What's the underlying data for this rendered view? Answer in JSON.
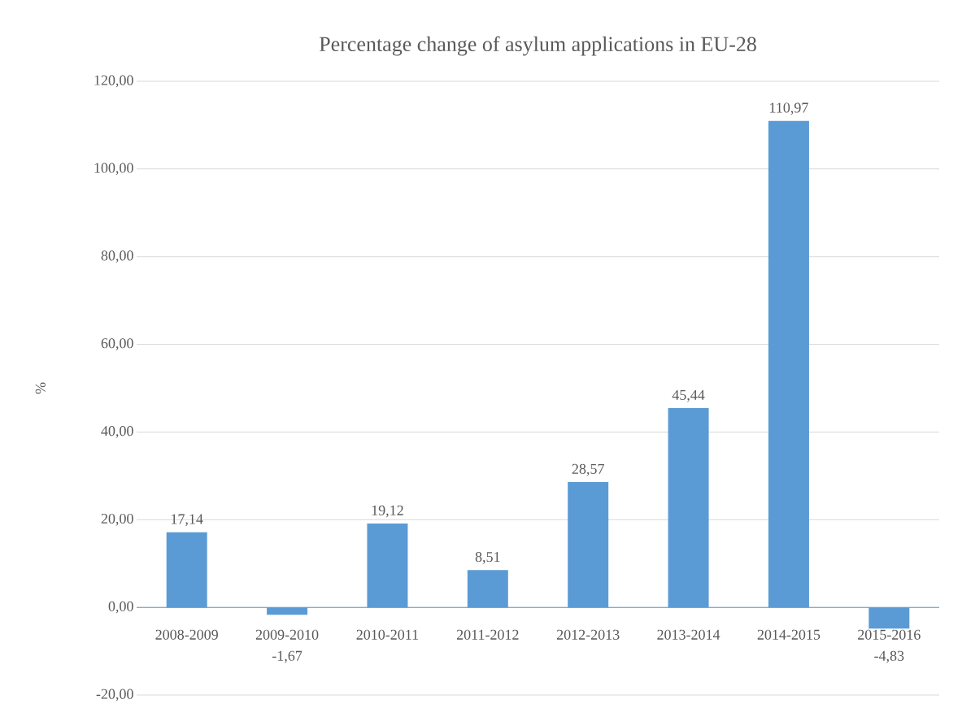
{
  "chart_data": {
    "type": "bar",
    "title": "Percentage change of asylum applications in EU-28",
    "ylabel": "%",
    "categories": [
      "2008-2009",
      "2009-2010",
      "2010-2011",
      "2011-2012",
      "2012-2013",
      "2013-2014",
      "2014-2015",
      "2015-2016"
    ],
    "values": [
      17.14,
      -1.67,
      19.12,
      8.51,
      28.57,
      45.44,
      110.97,
      -4.83
    ],
    "value_labels": [
      "17,14",
      "-1,67",
      "19,12",
      "8,51",
      "28,57",
      "45,44",
      "110,97",
      "-4,83"
    ],
    "color": "#5b9bd5",
    "ylim": [
      -20,
      120
    ],
    "yticks": [
      {
        "value": -20,
        "label": "-20,00"
      },
      {
        "value": 0,
        "label": "0,00"
      },
      {
        "value": 20,
        "label": "20,00"
      },
      {
        "value": 40,
        "label": "40,00"
      },
      {
        "value": 60,
        "label": "60,00"
      },
      {
        "value": 80,
        "label": "80,00"
      },
      {
        "value": 100,
        "label": "100,00"
      },
      {
        "value": 120,
        "label": "120,00"
      }
    ],
    "grid": "y"
  }
}
